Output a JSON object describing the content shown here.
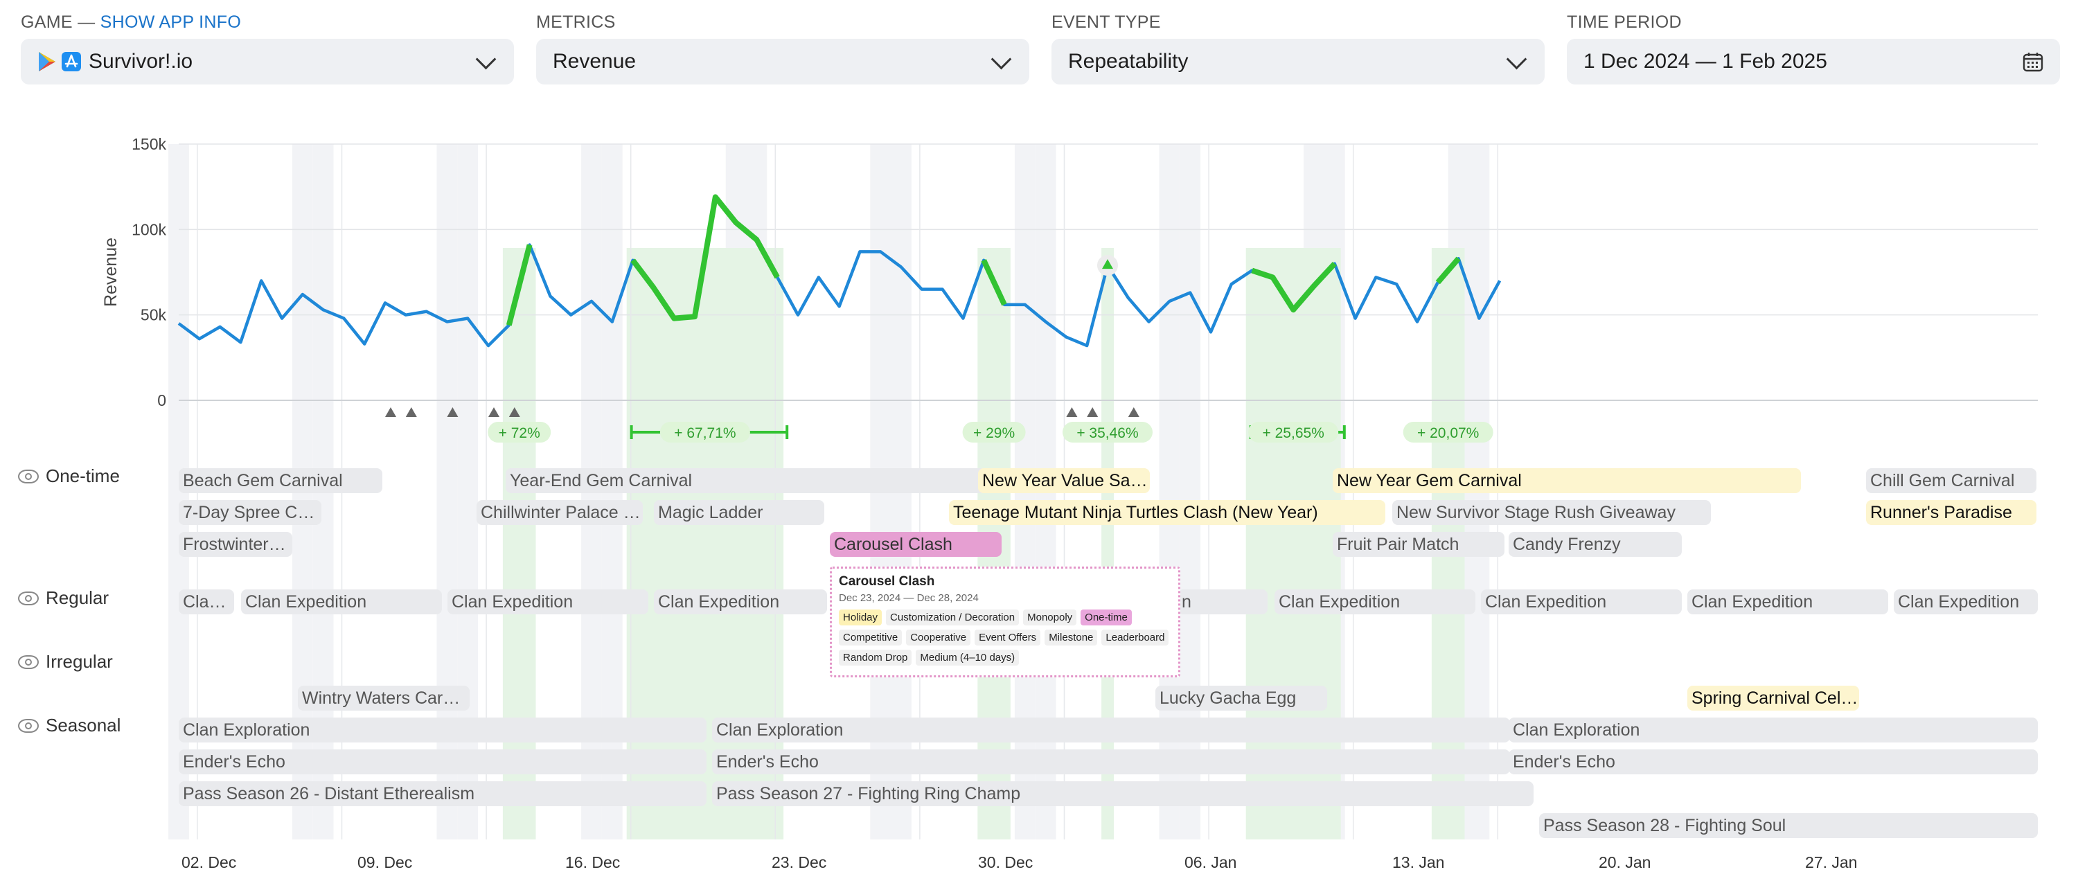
{
  "filters": {
    "game_label": "GAME",
    "game_sep": " — ",
    "show_app_info": "SHOW APP INFO",
    "game_value": "Survivor!.io",
    "metrics_label": "METRICS",
    "metrics_value": "Revenue",
    "event_type_label": "EVENT TYPE",
    "event_type_value": "Repeatability",
    "time_period_label": "TIME PERIOD",
    "time_period_value": "1 Dec 2024 — 1 Feb 2025",
    "icons": [
      "google-play-icon",
      "app-store-icon",
      "chevron-down-icon",
      "calendar-icon"
    ]
  },
  "colors": {
    "line": "#1f88d8",
    "highlight": "#32c332",
    "band": "#e5f4e5",
    "weekend": "#f2f3f6",
    "pill": "#dff5d8",
    "pill_text": "#2f9e2f"
  },
  "chart_data": {
    "type": "line",
    "x_start": "2024-12-01",
    "x_end": "2025-02-01",
    "ylabel": "Revenue",
    "ylim": [
      0,
      150000
    ],
    "yticks": [
      "150k",
      "100k",
      "50k",
      "0"
    ],
    "grid": true,
    "series": [
      {
        "values": [
          45000,
          36000,
          43000,
          34000,
          70000,
          48000,
          62000,
          53000,
          48000,
          33000,
          57000,
          50000,
          52000,
          46000,
          48000,
          32000,
          44000,
          91000,
          61000,
          50000,
          58000,
          46000,
          82000,
          66000,
          48000,
          49000,
          119000,
          104000,
          94000,
          72000,
          50000,
          72000,
          55000,
          87000,
          87000,
          78000,
          65000,
          65000,
          48000,
          82000,
          56000,
          56000,
          46000,
          37000,
          32000,
          79000,
          60000,
          46000,
          58000,
          63000,
          40000,
          68000,
          76000,
          72000,
          53000,
          67000,
          80000,
          48000,
          72000,
          68000,
          46000,
          69000,
          83000,
          48000,
          70000
        ]
      }
    ],
    "highlights": [
      {
        "start_day": 16,
        "end_day": 17,
        "label": "+ 72%"
      },
      {
        "start_day": 22,
        "end_day": 29,
        "label": "+ 67,71%"
      },
      {
        "start_day": 39,
        "end_day": 40,
        "label": "+ 29%"
      },
      {
        "start_day": 45,
        "end_day": 45,
        "label": "+ 35,46%"
      },
      {
        "start_day": 52,
        "end_day": 56,
        "label": "+ 25,65%"
      },
      {
        "start_day": 61,
        "end_day": 62,
        "label": "+ 20,07%"
      }
    ],
    "markers_days": [
      10,
      11,
      13,
      15,
      16,
      43,
      44,
      46
    ],
    "x_tick_labels": [
      "02. Dec",
      "09. Dec",
      "16. Dec",
      "23. Dec",
      "30. Dec",
      "06. Jan",
      "13. Jan",
      "20. Jan",
      "27. Jan"
    ]
  },
  "groups": {
    "one_time": "One-time",
    "regular": "Regular",
    "irregular": "Irregular",
    "seasonal": "Seasonal"
  },
  "events": [
    {
      "name": "Beach Gem Carnival",
      "style": "grey"
    },
    {
      "name": "Year-End Gem Carnival",
      "style": "grey"
    },
    {
      "name": "New Year Value Sa…",
      "style": "yellow"
    },
    {
      "name": "New Year Gem Carnival",
      "style": "yellow"
    },
    {
      "name": "Chill Gem Carnival",
      "style": "grey"
    },
    {
      "name": "7-Day Spree Ca…",
      "style": "grey"
    },
    {
      "name": "Chillwinter Palace …",
      "style": "grey"
    },
    {
      "name": "Magic Ladder",
      "style": "grey"
    },
    {
      "name": "Teenage Mutant Ninja Turtles Clash (New Year)",
      "style": "yellow"
    },
    {
      "name": "New Survivor Stage Rush Giveaway",
      "style": "grey"
    },
    {
      "name": "Runner's Paradise",
      "style": "yellow"
    },
    {
      "name": "Frostwinter…",
      "style": "grey"
    },
    {
      "name": "Carousel Clash",
      "style": "pink"
    },
    {
      "name": "Fruit Pair Match",
      "style": "grey"
    },
    {
      "name": "Candy Frenzy",
      "style": "grey"
    },
    {
      "name": "Cla…",
      "style": "grey"
    },
    {
      "name": "Clan Expedition",
      "style": "grey"
    },
    {
      "name": "Clan Expedition",
      "style": "grey"
    },
    {
      "name": "Clan Expedition",
      "style": "grey"
    },
    {
      "name": "n",
      "style": "grey"
    },
    {
      "name": "Clan Expedition",
      "style": "grey"
    },
    {
      "name": "Clan Expedition",
      "style": "grey"
    },
    {
      "name": "Clan Expedition",
      "style": "grey"
    },
    {
      "name": "Clan Expedition",
      "style": "grey"
    },
    {
      "name": "Wintry Waters Car…",
      "style": "grey"
    },
    {
      "name": "Lucky Gacha Egg",
      "style": "grey"
    },
    {
      "name": "Spring Carnival Cel…",
      "style": "yellow"
    },
    {
      "name": "Clan Exploration",
      "style": "grey"
    },
    {
      "name": "Clan Exploration",
      "style": "grey"
    },
    {
      "name": "Clan Exploration",
      "style": "grey"
    },
    {
      "name": "Ender's Echo",
      "style": "grey"
    },
    {
      "name": "Ender's Echo",
      "style": "grey"
    },
    {
      "name": "Ender's Echo",
      "style": "grey"
    },
    {
      "name": "Pass Season 26 - Distant Etherealism",
      "style": "grey"
    },
    {
      "name": "Pass Season 27 - Fighting Ring Champ",
      "style": "grey"
    },
    {
      "name": "Pass Season 28 - Fighting Soul",
      "style": "grey"
    }
  ],
  "tooltip": {
    "title": "Carousel Clash",
    "dates": "Dec 23, 2024 — Dec 28, 2024",
    "tags": [
      "Holiday",
      "Customization / Decoration",
      "Monopoly",
      "One-time",
      "Competitive",
      "Cooperative",
      "Event Offers",
      "Milestone",
      "Leaderboard",
      "Random Drop",
      "Medium (4–10 days)"
    ]
  }
}
